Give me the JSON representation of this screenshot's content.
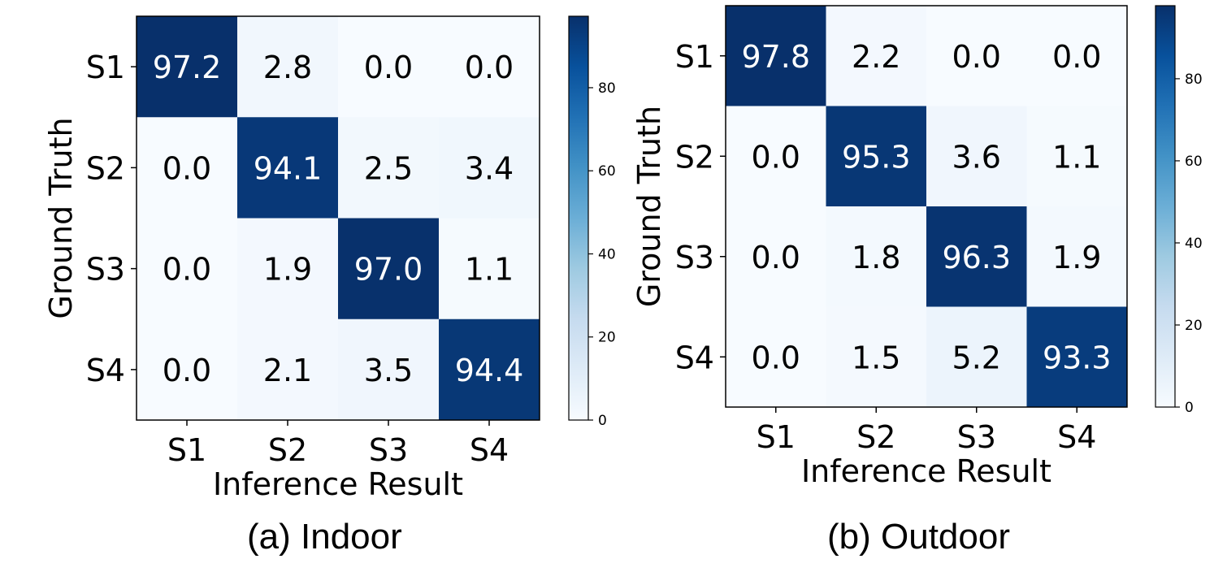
{
  "chart_data": [
    {
      "type": "heatmap",
      "caption": "(a)  Indoor",
      "xlabel": "Inference Result",
      "ylabel": "Ground Truth",
      "x_categories": [
        "S1",
        "S2",
        "S3",
        "S4"
      ],
      "y_categories": [
        "S1",
        "S2",
        "S3",
        "S4"
      ],
      "values": [
        [
          97.2,
          2.8,
          0.0,
          0.0
        ],
        [
          0.0,
          94.1,
          2.5,
          3.4
        ],
        [
          0.0,
          1.9,
          97.0,
          1.1
        ],
        [
          0.0,
          2.1,
          3.5,
          94.4
        ]
      ],
      "value_labels": [
        [
          "97.2",
          "2.8",
          "0.0",
          "0.0"
        ],
        [
          "0.0",
          "94.1",
          "2.5",
          "3.4"
        ],
        [
          "0.0",
          "1.9",
          "97.0",
          "1.1"
        ],
        [
          "0.0",
          "2.1",
          "3.5",
          "94.4"
        ]
      ],
      "colorbar": {
        "ticks": [
          0,
          20,
          40,
          60,
          80
        ],
        "tick_labels": [
          "0",
          "20",
          "40",
          "60",
          "80"
        ],
        "range": [
          0,
          97.2
        ]
      },
      "colormap": "Blues"
    },
    {
      "type": "heatmap",
      "caption": "(b) Outdoor",
      "xlabel": "Inference Result",
      "ylabel": "Ground Truth",
      "x_categories": [
        "S1",
        "S2",
        "S3",
        "S4"
      ],
      "y_categories": [
        "S1",
        "S2",
        "S3",
        "S4"
      ],
      "values": [
        [
          97.8,
          2.2,
          0.0,
          0.0
        ],
        [
          0.0,
          95.3,
          3.6,
          1.1
        ],
        [
          0.0,
          1.8,
          96.3,
          1.9
        ],
        [
          0.0,
          1.5,
          5.2,
          93.3
        ]
      ],
      "value_labels": [
        [
          "97.8",
          "2.2",
          "0.0",
          "0.0"
        ],
        [
          "0.0",
          "95.3",
          "3.6",
          "1.1"
        ],
        [
          "0.0",
          "1.8",
          "96.3",
          "1.9"
        ],
        [
          "0.0",
          "1.5",
          "5.2",
          "93.3"
        ]
      ],
      "colorbar": {
        "ticks": [
          0,
          20,
          40,
          60,
          80
        ],
        "tick_labels": [
          "0",
          "20",
          "40",
          "60",
          "80"
        ],
        "range": [
          0,
          97.8
        ]
      },
      "colormap": "Blues"
    }
  ]
}
